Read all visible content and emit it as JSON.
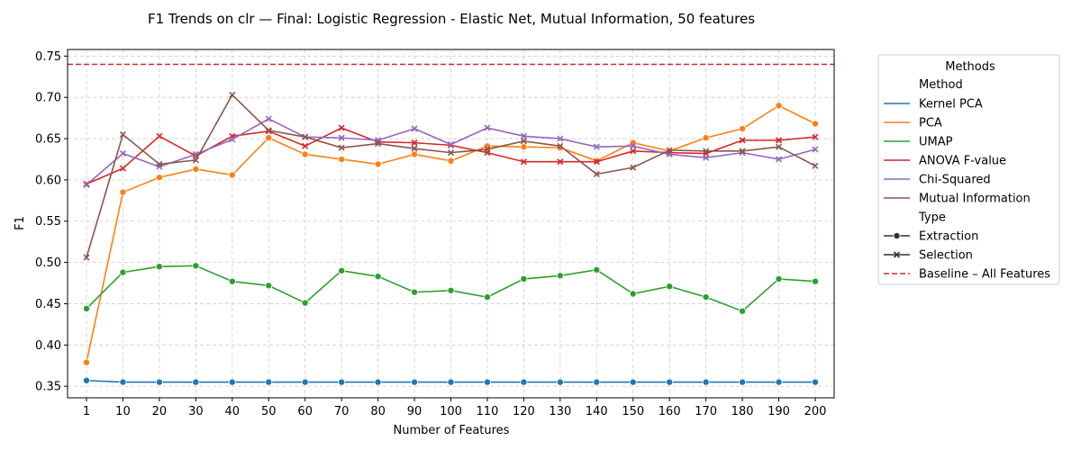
{
  "chart_data": {
    "type": "line",
    "title": "F1 Trends on clr — Final: Logistic Regression - Elastic Net, Mutual Information, 50 features",
    "xlabel": "Number of Features",
    "ylabel": "F1",
    "categories": [
      "1",
      "10",
      "20",
      "30",
      "40",
      "50",
      "60",
      "70",
      "80",
      "90",
      "100",
      "110",
      "120",
      "130",
      "140",
      "150",
      "160",
      "170",
      "180",
      "190",
      "200"
    ],
    "ylim": [
      0.336,
      0.758
    ],
    "yticks": [
      0.35,
      0.4,
      0.45,
      0.5,
      0.55,
      0.6,
      0.65,
      0.7,
      0.75
    ],
    "ytick_labels": [
      "0.35",
      "0.40",
      "0.45",
      "0.50",
      "0.55",
      "0.60",
      "0.65",
      "0.70",
      "0.75"
    ],
    "grid": true,
    "baseline": {
      "name": "Baseline – All Features",
      "value": 0.74,
      "color": "#d62728"
    },
    "series": [
      {
        "name": "Kernel PCA",
        "type": "Extraction",
        "color": "#1f77b4",
        "values": [
          0.357,
          0.355,
          0.355,
          0.355,
          0.355,
          0.355,
          0.355,
          0.355,
          0.355,
          0.355,
          0.355,
          0.355,
          0.355,
          0.355,
          0.355,
          0.355,
          0.355,
          0.355,
          0.355,
          0.355,
          0.355
        ]
      },
      {
        "name": "PCA",
        "type": "Extraction",
        "color": "#ff7f0e",
        "values": [
          0.379,
          0.585,
          0.603,
          0.613,
          0.606,
          0.651,
          0.631,
          0.625,
          0.619,
          0.631,
          0.623,
          0.641,
          0.64,
          0.639,
          0.623,
          0.645,
          0.635,
          0.651,
          0.662,
          0.69,
          0.668
        ]
      },
      {
        "name": "UMAP",
        "type": "Extraction",
        "color": "#2ca02c",
        "values": [
          0.444,
          0.488,
          0.495,
          0.496,
          0.477,
          0.472,
          0.451,
          0.49,
          0.483,
          0.464,
          0.466,
          0.458,
          0.48,
          0.484,
          0.491,
          0.462,
          0.471,
          0.458,
          0.441,
          0.48,
          0.477
        ]
      },
      {
        "name": "ANOVA F-value",
        "type": "Selection",
        "color": "#d62728",
        "values": [
          0.595,
          0.614,
          0.653,
          0.629,
          0.653,
          0.659,
          0.641,
          0.663,
          0.646,
          0.645,
          0.642,
          0.633,
          0.622,
          0.622,
          0.622,
          0.635,
          0.633,
          0.632,
          0.648,
          0.648,
          0.652
        ]
      },
      {
        "name": "Chi-Squared",
        "type": "Selection",
        "color": "#9467bd",
        "values": [
          0.594,
          0.632,
          0.616,
          0.631,
          0.649,
          0.674,
          0.652,
          0.651,
          0.648,
          0.662,
          0.643,
          0.663,
          0.653,
          0.65,
          0.64,
          0.641,
          0.631,
          0.627,
          0.633,
          0.625,
          0.637
        ]
      },
      {
        "name": "Mutual Information",
        "type": "Selection",
        "color": "#8c564b",
        "values": [
          0.506,
          0.655,
          0.619,
          0.624,
          0.703,
          0.66,
          0.652,
          0.639,
          0.644,
          0.638,
          0.633,
          0.637,
          0.647,
          0.641,
          0.607,
          0.615,
          0.636,
          0.635,
          0.635,
          0.64,
          0.617
        ]
      }
    ],
    "legend": {
      "title": "Methods",
      "method_header": "Method",
      "type_header": "Type",
      "type_entries": [
        {
          "label": "Extraction",
          "marker": "circle"
        },
        {
          "label": "Selection",
          "marker": "x"
        }
      ],
      "placement": "outside-right"
    }
  }
}
